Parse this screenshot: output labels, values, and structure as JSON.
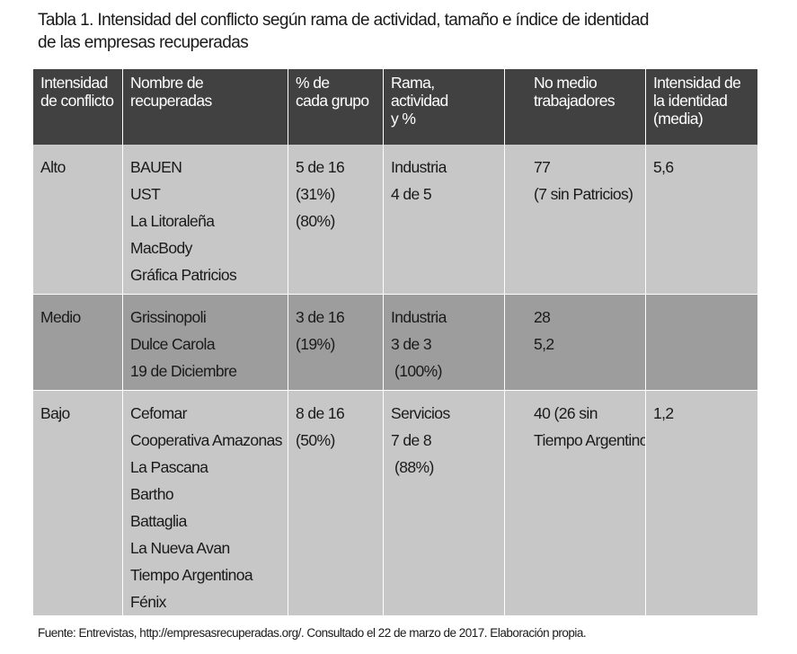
{
  "caption": {
    "line1": "Tabla 1. Intensidad del conflicto según rama de actividad, tamaño e índice de identidad",
    "line2": "de las empresas recuperadas"
  },
  "table": {
    "headers": [
      [
        "Intensidad",
        "de conflicto"
      ],
      [
        "Nombre de",
        "recuperadas"
      ],
      [
        "% de",
        "cada grupo"
      ],
      [
        "Rama,",
        "actividad",
        "y %"
      ],
      [
        "No medio",
        "trabajadores"
      ],
      [
        "Intensidad de",
        "la identidad",
        "(media)"
      ]
    ],
    "rows": [
      {
        "intensidad": "Alto",
        "nombres": [
          "BAUEN",
          "UST",
          "La Litoraleña",
          "MacBody",
          "Gráfica Patricios"
        ],
        "porcentaje": [
          "5 de 16",
          "(31%)",
          "(80%)"
        ],
        "rama": [
          "Industria",
          "4 de 5"
        ],
        "trabajadores": [
          "77",
          "(7 sin Patricios)"
        ],
        "identidad": "5,6"
      },
      {
        "intensidad": "Medio",
        "nombres": [
          "Grissinopoli",
          "Dulce Carola",
          "19 de Diciembre"
        ],
        "porcentaje": [
          "3 de 16",
          "(19%)"
        ],
        "rama": [
          "Industria",
          "3 de 3",
          "(100%)"
        ],
        "trabajadores": [
          "28",
          "5,2"
        ],
        "identidad": ""
      },
      {
        "intensidad": "Bajo",
        "nombres": [
          "Cefomar",
          "Cooperativa Amazonas",
          "La Pascana",
          "Bartho",
          "Battaglia",
          "La Nueva Avan",
          "Tiempo Argentinoa",
          "Fénix"
        ],
        "porcentaje": [
          "8 de 16",
          "(50%)"
        ],
        "rama": [
          "Servicios",
          "7 de 8",
          "(88%)"
        ],
        "trabajadores": [
          "40 (26 sin",
          "Tiempo Argentino)"
        ],
        "identidad": "1,2"
      }
    ]
  },
  "source": "Fuente: Entrevistas, http://empresasrecuperadas.org/. Consultado el 22 de marzo de 2017. Elaboración propia.",
  "colors": {
    "header_bg": "#414142",
    "row_light": "#c7c7c8",
    "row_dark": "#9d9d9e"
  }
}
